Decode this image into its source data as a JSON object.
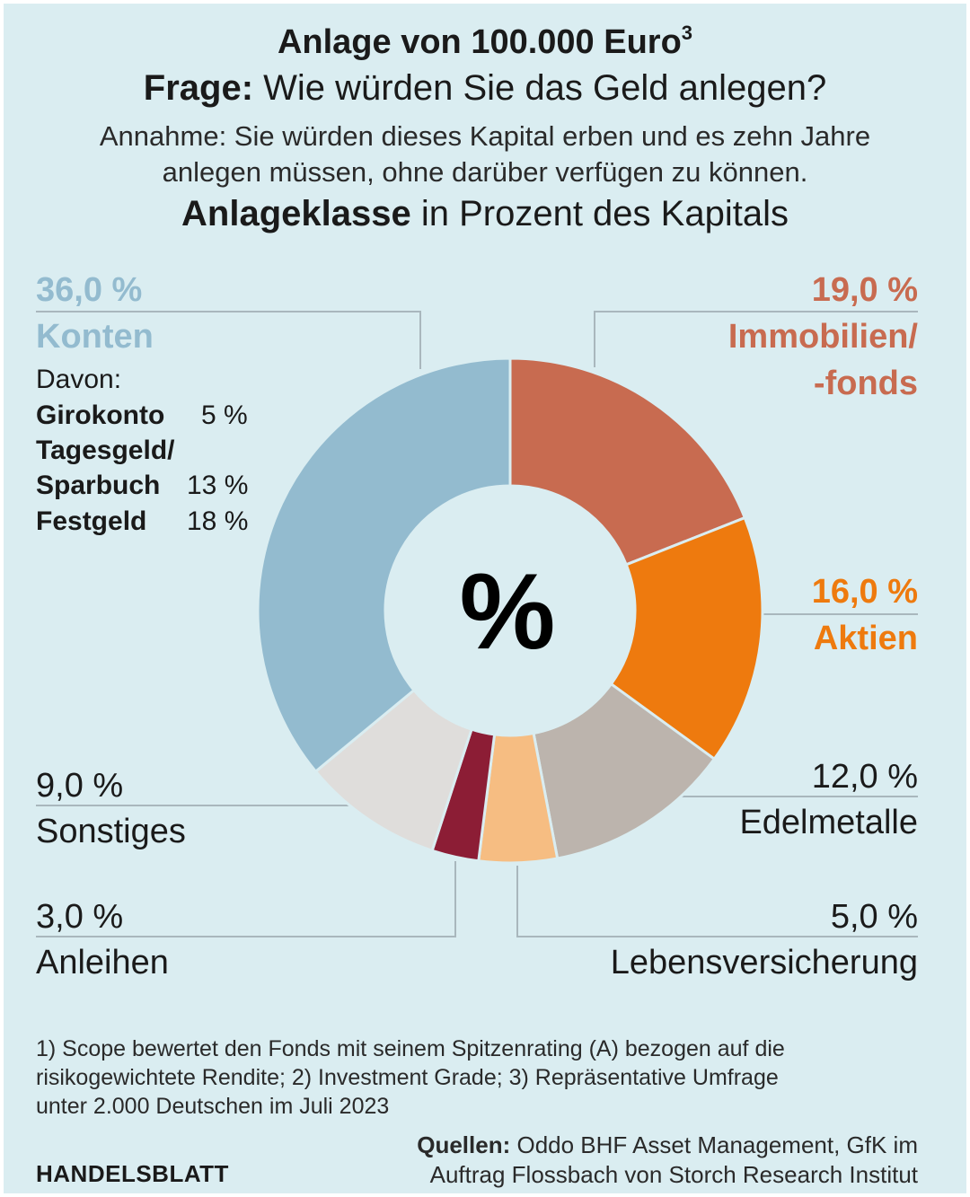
{
  "header": {
    "title": "Anlage von 100.000 Euro",
    "title_sup": "3",
    "question_bold": "Frage:",
    "question_text": " Wie würden Sie das Geld anlegen?",
    "assumption_line1": "Annahme: Sie würden dieses Kapital erben und es zehn Jahre",
    "assumption_line2": "anlegen müssen, ohne darüber verfügen zu können.",
    "axis_bold": "Anlageklasse",
    "axis_text": " in Prozent des Kapitals"
  },
  "center_symbol": "%",
  "chart_data": {
    "type": "pie",
    "donut": true,
    "unit": "%",
    "slices": [
      {
        "label": "Immobilien/ -fonds",
        "label_line1": "Immobilien/",
        "label_line2": "-fonds",
        "value": 19.0,
        "display": "19,0 %",
        "color": "#c86b50"
      },
      {
        "label": "Aktien",
        "value": 16.0,
        "display": "16,0 %",
        "color": "#ee7a0e"
      },
      {
        "label": "Edelmetalle",
        "value": 12.0,
        "display": "12,0 %",
        "color": "#bcb4ad"
      },
      {
        "label": "Lebensversicherung",
        "value": 5.0,
        "display": "5,0 %",
        "color": "#f6bd82"
      },
      {
        "label": "Anleihen",
        "value": 3.0,
        "display": "3,0 %",
        "color": "#8c1d35"
      },
      {
        "label": "Sonstiges",
        "value": 9.0,
        "display": "9,0 %",
        "color": "#dfdddb"
      },
      {
        "label": "Konten",
        "value": 36.0,
        "display": "36,0 %",
        "color": "#93bbcf"
      }
    ],
    "konten_breakdown": {
      "heading": "Davon:",
      "items": [
        {
          "name": "Girokonto",
          "value": "5 %"
        },
        {
          "name_line1": "Tagesgeld/",
          "name_line2": "Sparbuch",
          "value": "13 %"
        },
        {
          "name": "Festgeld",
          "value": "18 %"
        }
      ]
    }
  },
  "colors": {
    "konten_label": "#93bbcf",
    "immobilien_label": "#c86b50",
    "aktien_label": "#ee7a0e",
    "leader_line": "#a9b7bd"
  },
  "footer": {
    "footnote_line1": "1) Scope bewertet den Fonds mit seinem Spitzenrating (A) bezogen auf die",
    "footnote_line2": "risikogewichtete Rendite; 2) Investment Grade; 3) Repräsentative Umfrage",
    "footnote_line3": "unter 2.000 Deutschen im Juli 2023",
    "sources_bold": "Quellen:",
    "sources_line1": " Oddo BHF Asset Management, GfK im",
    "sources_line2": "Auftrag Flossbach von Storch Research Institut",
    "brand": "HANDELSBLATT"
  }
}
